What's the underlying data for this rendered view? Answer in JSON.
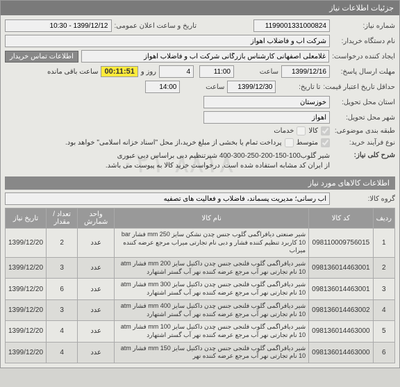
{
  "panel_title": "جزئیات اطلاعات نیاز",
  "header": {
    "need_number_label": "شماره نیاز:",
    "need_number": "1199001331000824",
    "announce_label": "تاریخ و ساعت اعلان عمومی:",
    "announce_value": "1399/12/12 - 10:30",
    "buyer_label": "نام دستگاه خریدار:",
    "buyer_value": "شرکت آب و فاضلاب اهواز",
    "creator_label": "ایجاد کننده درخواست:",
    "creator_value": "غلامعلی اصفهانی کارشناس بازرگانی شرکت آب و فاضلاب اهواز",
    "contact_btn": "اطلاعات تماس خریدار",
    "deadline_label": "مهلت ارسال پاسخ:",
    "deadline_date": "1399/12/16",
    "time_lbl": "ساعت",
    "deadline_time": "11:00",
    "day_lbl": "و",
    "days_remain": "4",
    "days_remain_lbl": "روز و",
    "timer": "00:11:51",
    "timer_lbl": "ساعت باقی مانده",
    "validity_label": "حداقل تاریخ اعتبار قیمت:",
    "validity_until_lbl": "تا تاریخ:",
    "validity_date": "1399/12/30",
    "validity_time": "14:00",
    "province_label": "استان محل تحویل:",
    "province_value": "خوزستان",
    "city_label": "شهر محل تحویل:",
    "city_value": "اهواز",
    "category_label": "طبقه بندی موضوعی:",
    "category_goods": "کالا",
    "category_services": "خدمات",
    "process_label": "نوع فرآیند خرید:",
    "process_medium": "متوسط",
    "process_note": "پرداخت تمام یا بخشی از مبلغ خرید،از محل \"اسناد خزانه اسلامی\" خواهد بود."
  },
  "summary": {
    "title_label": "شرح کلی نیاز:",
    "title_text": "شیر گلوب100-150-200-250-300-400 شیرتنظیم دبی براساس دبی عبوری\nاز ایران کد مشابه استفاده شده است. درخواست خرید کالا به پیوست می باشد."
  },
  "goods": {
    "section_title": "اطلاعات کالاهای مورد نیاز",
    "group_label": "گروه کالا:",
    "group_value": "آب رسانی؛ مدیریت پسماند، فاضلاب و فعالیت های تصفیه",
    "columns": [
      "ردیف",
      "کد کالا",
      "نام کالا",
      "واحد شمارش",
      "تعداد / مقدار",
      "تاریخ نیاز"
    ],
    "rows": [
      [
        "1",
        "098110009756015",
        "شیر صنعتی دیافراگمی گلوب جنس چدن نشکن سایز 250 mm فشار bar 10 کاربرد تنظیم کننده فشار و دبی نام تجارتی میراب مرجع عرضه کننده میراب",
        "عدد",
        "2",
        "1399/12/20"
      ],
      [
        "2",
        "098136014463001",
        "شیر دیافراگمی گلوب فلنجی جنس چدن داکتیل سایز 200 mm فشار atm 10 نام تجارتی نهر آب مرجع عرضه کننده نهر آب گستر اشتهارد",
        "عدد",
        "3",
        "1399/12/20"
      ],
      [
        "3",
        "098136014463001",
        "شیر دیافراگمی گلوب فلنجی جنس چدن داکتیل سایز 300 mm فشار atm 10 نام تجارتی نهر آب مرجع عرضه کننده نهر آب گستر اشتهارد",
        "عدد",
        "6",
        "1399/12/20"
      ],
      [
        "4",
        "098136014463002",
        "شیر دیافراگمی گلوب فلنجی جنس چدن داکتیل سایز 400 mm فشار atm 10 نام تجارتی نهر آب مرجع عرضه کننده نهر آب گستر اشتهارد",
        "عدد",
        "3",
        "1399/12/20"
      ],
      [
        "5",
        "098136014463000",
        "شیر دیافراگمی گلوب فلنجی جنس چدن داکتیل سایز 100 mm فشار atm 10 نام تجارتی نهر آب مرجع عرضه کننده نهر آب گستر اشتهارد",
        "عدد",
        "4",
        "1399/12/20"
      ],
      [
        "6",
        "098136014463000",
        "شیر دیافراگمی گلوب فلنجی جنس چدن داکتیل سایز 150 mm فشار atm 10 نام تجارتی نهر آب مرجع عرضه کننده نهر",
        "عدد",
        "4",
        "1399/12/20"
      ]
    ]
  }
}
